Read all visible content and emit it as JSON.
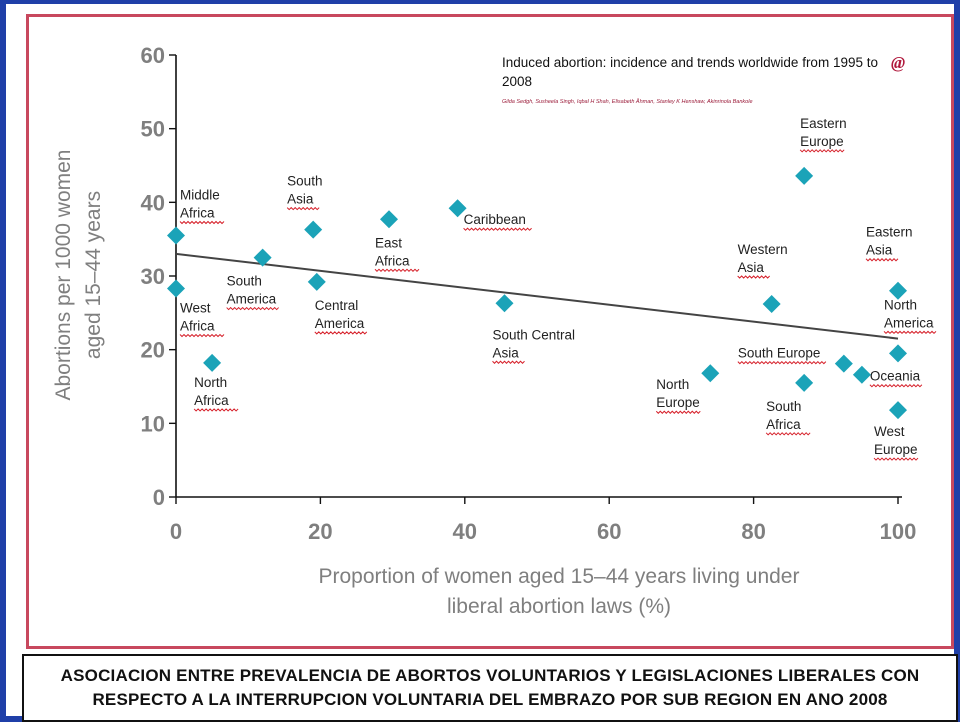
{
  "paper": {
    "title": "Induced abortion: incidence and trends worldwide from 1995 to 2008",
    "authors": "Gilda Sedgh, Susheela Singh, Iqbal H Shah, Elisabeth Åhman, Stanley K Henshaw, Akinrinola Bankole",
    "logo": "@"
  },
  "caption": "ASOCIACION ENTRE PREVALENCIA DE ABORTOS VOLUNTARIOS Y LEGISLACIONES LIBERALES CON RESPECTO A LA INTERRUPCION VOLUNTARIA DEL EMBRAZO POR SUB REGION EN ANO 2008",
  "colors": {
    "marker": "#1ba3b8",
    "axis_text": "#7f7f7f",
    "label_underline": "#d6202a",
    "frame": "#c8485e",
    "background": "#1f3fa8"
  },
  "chart_data": {
    "type": "scatter",
    "xlabel": "Proportion of women aged 15–44 years living under liberal abortion laws (%)",
    "ylabel": "Abortions per 1000 women aged 15–44 years",
    "xlim": [
      0,
      100
    ],
    "ylim": [
      0,
      60
    ],
    "xticks": [
      "0",
      "20",
      "40",
      "60",
      "80",
      "100"
    ],
    "yticks": [
      "0",
      "10",
      "20",
      "30",
      "40",
      "50",
      "60"
    ],
    "grid": false,
    "trendline": {
      "x": [
        0,
        100
      ],
      "y": [
        33,
        21.5
      ]
    },
    "points": [
      {
        "label": "Middle Africa",
        "x": 0,
        "y": 35.5
      },
      {
        "label": "West Africa",
        "x": 0,
        "y": 28.3
      },
      {
        "label": "North Africa",
        "x": 5,
        "y": 18.2
      },
      {
        "label": "South America",
        "x": 12,
        "y": 32.5
      },
      {
        "label": "South Asia",
        "x": 19,
        "y": 36.3
      },
      {
        "label": "Central America",
        "x": 19.5,
        "y": 29.2
      },
      {
        "label": "East Africa",
        "x": 29.5,
        "y": 37.7
      },
      {
        "label": "Caribbean",
        "x": 39,
        "y": 39.2
      },
      {
        "label": "South Central Asia",
        "x": 45.5,
        "y": 26.3
      },
      {
        "label": "North Europe",
        "x": 74,
        "y": 16.8
      },
      {
        "label": "Western Asia",
        "x": 82.5,
        "y": 26.2
      },
      {
        "label": "Eastern Europe",
        "x": 87,
        "y": 43.6
      },
      {
        "label": "South Africa",
        "x": 87,
        "y": 15.5
      },
      {
        "label": "South Europe",
        "x": 92.5,
        "y": 18.1
      },
      {
        "label": "Oceania",
        "x": 95,
        "y": 16.6
      },
      {
        "label": "Eastern Asia",
        "x": 100,
        "y": 28
      },
      {
        "label": "North America",
        "x": 100,
        "y": 19.5
      },
      {
        "label": "West Europe",
        "x": 100,
        "y": 11.8
      }
    ]
  }
}
